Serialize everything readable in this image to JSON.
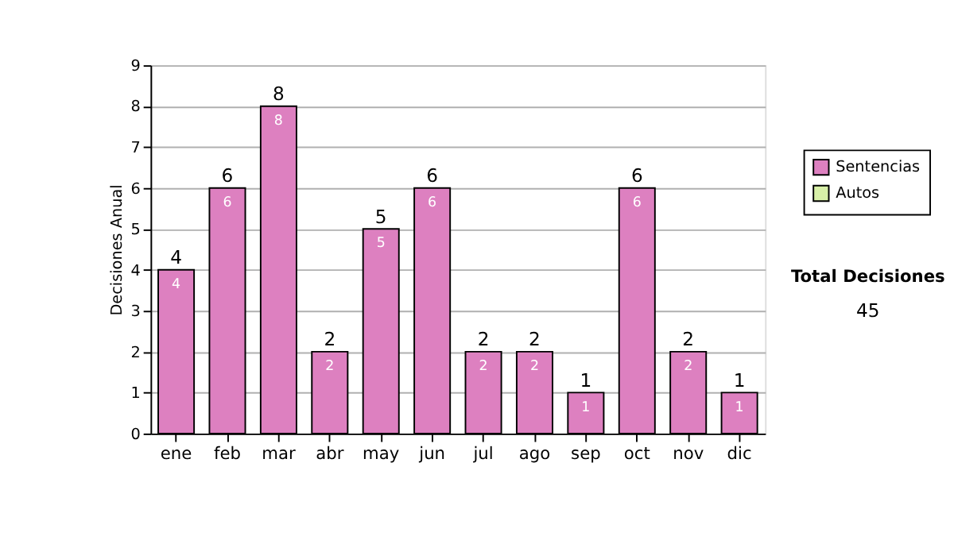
{
  "chart_data": {
    "type": "bar",
    "ylabel": "Decisiones Anual",
    "categories": [
      "ene",
      "feb",
      "mar",
      "abr",
      "may",
      "jun",
      "jul",
      "ago",
      "sep",
      "oct",
      "nov",
      "dic"
    ],
    "series": [
      {
        "name": "Sentencias",
        "color": "#dd80c0",
        "values": [
          4,
          6,
          8,
          2,
          5,
          6,
          2,
          2,
          1,
          6,
          2,
          1
        ]
      },
      {
        "name": "Autos",
        "color": "#d8f0a8",
        "values": [
          null,
          null,
          null,
          null,
          null,
          null,
          null,
          null,
          null,
          null,
          null,
          null
        ]
      }
    ],
    "stacked": true,
    "data_labels": true,
    "totals": [
      "4",
      "6",
      "8",
      "2",
      "5",
      "6",
      "2",
      "2",
      "1",
      "6",
      "2",
      "1"
    ],
    "ylim": [
      0,
      9
    ],
    "yticks": [
      0,
      1,
      2,
      3,
      4,
      5,
      6,
      7,
      8,
      9
    ],
    "grid": "y",
    "legend": "right",
    "annotations": [
      "Total Decisiones",
      "45"
    ]
  }
}
